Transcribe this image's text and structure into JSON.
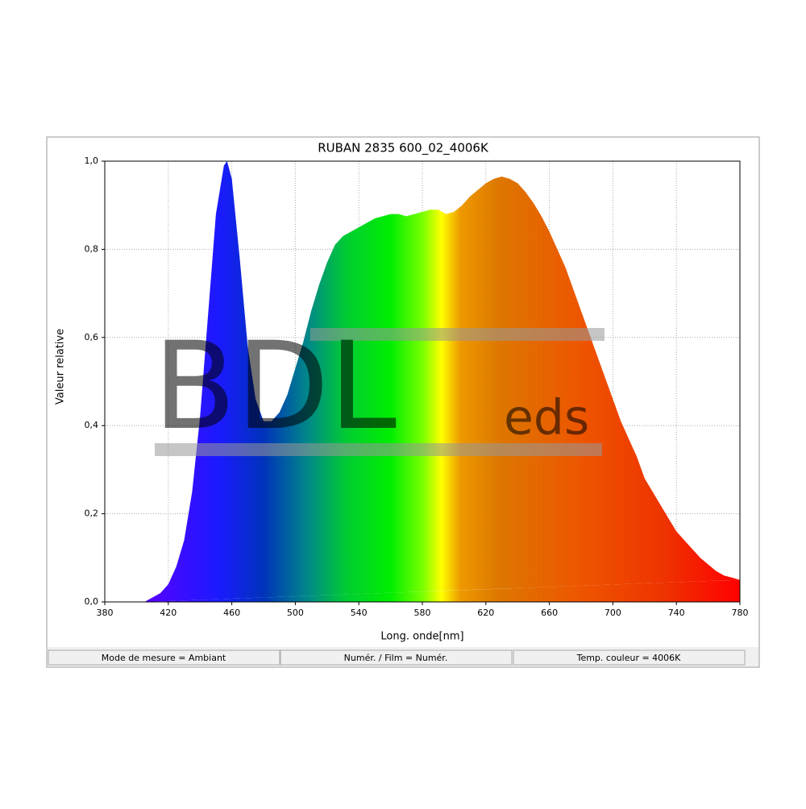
{
  "chart_data": {
    "type": "area",
    "title": "RUBAN 2835 600_02_4006K",
    "xlabel": "Long. onde[nm]",
    "ylabel": "Valeur relative",
    "watermark": [
      "BDL",
      "eds"
    ],
    "x": [
      405,
      410,
      415,
      420,
      425,
      430,
      435,
      440,
      445,
      450,
      455,
      457,
      460,
      465,
      470,
      475,
      480,
      485,
      490,
      495,
      500,
      505,
      510,
      515,
      520,
      525,
      530,
      535,
      540,
      545,
      550,
      555,
      560,
      565,
      570,
      575,
      580,
      585,
      590,
      595,
      600,
      605,
      610,
      615,
      620,
      625,
      630,
      635,
      640,
      645,
      650,
      655,
      660,
      665,
      670,
      675,
      680,
      685,
      690,
      695,
      700,
      705,
      710,
      715,
      720,
      725,
      730,
      735,
      740,
      745,
      750,
      755,
      760,
      765,
      770,
      775,
      780
    ],
    "values": [
      0,
      0.01,
      0.02,
      0.04,
      0.08,
      0.14,
      0.25,
      0.42,
      0.65,
      0.88,
      0.99,
      1.0,
      0.96,
      0.78,
      0.58,
      0.46,
      0.41,
      0.41,
      0.43,
      0.47,
      0.53,
      0.59,
      0.66,
      0.72,
      0.77,
      0.81,
      0.83,
      0.84,
      0.85,
      0.86,
      0.87,
      0.875,
      0.88,
      0.88,
      0.875,
      0.88,
      0.885,
      0.89,
      0.89,
      0.88,
      0.885,
      0.9,
      0.92,
      0.935,
      0.95,
      0.96,
      0.965,
      0.96,
      0.95,
      0.93,
      0.905,
      0.875,
      0.84,
      0.8,
      0.76,
      0.71,
      0.66,
      0.61,
      0.56,
      0.51,
      0.46,
      0.41,
      0.37,
      0.33,
      0.28,
      0.25,
      0.22,
      0.19,
      0.16,
      0.14,
      0.12,
      0.1,
      0.085,
      0.07,
      0.06,
      0.055,
      0.05
    ],
    "xlim": [
      380,
      780
    ],
    "ylim": [
      0,
      1
    ],
    "xticks": [
      380,
      420,
      460,
      500,
      540,
      580,
      620,
      660,
      700,
      740,
      780
    ],
    "yticks": [
      {
        "value": 0,
        "label": "0,0"
      },
      {
        "value": 0.2,
        "label": "0,2"
      },
      {
        "value": 0.4,
        "label": "0,4"
      },
      {
        "value": 0.6,
        "label": "0,6"
      },
      {
        "value": 0.8,
        "label": "0,8"
      },
      {
        "value": 1,
        "label": "1,0"
      }
    ],
    "grid": true
  },
  "status_bar": [
    "Mode de mesure = Ambiant",
    "Numér. / Film = Numér.",
    "Temp. couleur = 4006K"
  ]
}
